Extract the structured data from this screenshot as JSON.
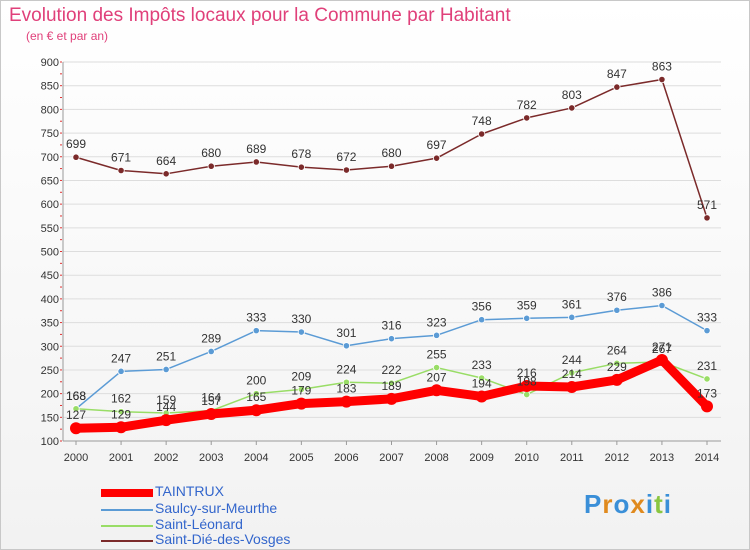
{
  "title": "Evolution des Impôts locaux pour la Commune par Habitant",
  "subtitle": "(en € et par an)",
  "logo": "Proxiti",
  "chart_data": {
    "type": "line",
    "title": "Evolution des Impôts locaux pour la Commune par Habitant",
    "subtitle": "(en € et par an)",
    "x": [
      "2000",
      "2001",
      "2002",
      "2003",
      "2004",
      "2005",
      "2006",
      "2007",
      "2008",
      "2009",
      "2010",
      "2011",
      "2012",
      "2013",
      "2014"
    ],
    "ylim": [
      100,
      900
    ],
    "yticks": [
      100,
      150,
      200,
      250,
      300,
      350,
      400,
      450,
      500,
      550,
      600,
      650,
      700,
      750,
      800,
      850,
      900
    ],
    "grid": "horizontal",
    "legend": "bottom-left",
    "series": [
      {
        "name": "TAINTRUX",
        "color": "#ff0000",
        "values": [
          127,
          129,
          144,
          157,
          165,
          179,
          183,
          189,
          207,
          194,
          216,
          214,
          229,
          271,
          173
        ],
        "labels": [
          "127",
          "129",
          "144",
          "157",
          "165",
          "179",
          "183",
          "189",
          "207",
          "194",
          "216",
          "214",
          "229",
          "271",
          "173"
        ]
      },
      {
        "name": "Saulcy-sur-Meurthe",
        "color": "#5b9bd5",
        "values": [
          168,
          247,
          251,
          289,
          333,
          330,
          301,
          316,
          323,
          356,
          359,
          361,
          376,
          386,
          333
        ],
        "labels": [
          "168",
          "247",
          "251",
          "289",
          "333",
          "330",
          "301",
          "316",
          "323",
          "356",
          "359",
          "361",
          "376",
          "386",
          "333"
        ]
      },
      {
        "name": "Saint-Léonard",
        "color": "#99dd66",
        "values": [
          168,
          162,
          159,
          164,
          200,
          209,
          224,
          222,
          255,
          233,
          198,
          244,
          264,
          267,
          231
        ],
        "labels": [
          "168",
          "162",
          "159",
          "164",
          "200",
          "209",
          "224",
          "222",
          "255",
          "233",
          "198",
          "244",
          "264",
          "267",
          "231"
        ]
      },
      {
        "name": "Saint-Dié-des-Vosges",
        "color": "#7b2a2a",
        "values": [
          699,
          671,
          664,
          680,
          689,
          678,
          672,
          680,
          697,
          748,
          782,
          803,
          847,
          863,
          571
        ],
        "labels": [
          "699",
          "671",
          "664",
          "680",
          "689",
          "678",
          "672",
          "680",
          "697",
          "748",
          "782",
          "803",
          "847",
          "863",
          "571"
        ]
      }
    ]
  }
}
